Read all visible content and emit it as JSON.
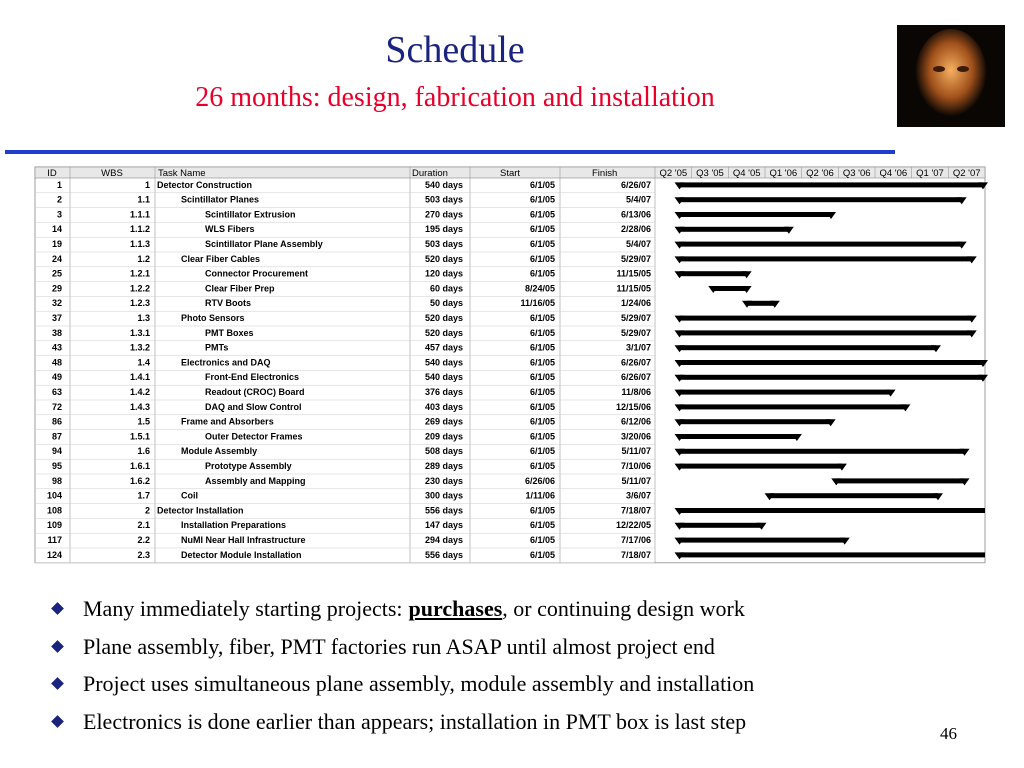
{
  "header": {
    "title": "Schedule",
    "subtitle": "26 months: design, fabrication and installation"
  },
  "table": {
    "columns": [
      "ID",
      "WBS",
      "Task Name",
      "Duration",
      "Start",
      "Finish"
    ],
    "quarters": [
      "Q2 '05",
      "Q3 '05",
      "Q4 '05",
      "Q1 '06",
      "Q2 '06",
      "Q3 '06",
      "Q4 '06",
      "Q1 '07",
      "Q2 '07"
    ],
    "rows": [
      [
        "1",
        "1",
        "Detector Construction",
        "540 days",
        "6/1/05",
        "6/26/07"
      ],
      [
        "2",
        "1.1",
        "Scintillator Planes",
        "503 days",
        "6/1/05",
        "5/4/07"
      ],
      [
        "3",
        "1.1.1",
        "Scintillator Extrusion",
        "270 days",
        "6/1/05",
        "6/13/06"
      ],
      [
        "14",
        "1.1.2",
        "WLS Fibers",
        "195 days",
        "6/1/05",
        "2/28/06"
      ],
      [
        "19",
        "1.1.3",
        "Scintillator Plane Assembly",
        "503 days",
        "6/1/05",
        "5/4/07"
      ],
      [
        "24",
        "1.2",
        "Clear Fiber Cables",
        "520 days",
        "6/1/05",
        "5/29/07"
      ],
      [
        "25",
        "1.2.1",
        "Connector Procurement",
        "120 days",
        "6/1/05",
        "11/15/05"
      ],
      [
        "29",
        "1.2.2",
        "Clear Fiber Prep",
        "60 days",
        "8/24/05",
        "11/15/05"
      ],
      [
        "32",
        "1.2.3",
        "RTV Boots",
        "50 days",
        "11/16/05",
        "1/24/06"
      ],
      [
        "37",
        "1.3",
        "Photo Sensors",
        "520 days",
        "6/1/05",
        "5/29/07"
      ],
      [
        "38",
        "1.3.1",
        "PMT Boxes",
        "520 days",
        "6/1/05",
        "5/29/07"
      ],
      [
        "43",
        "1.3.2",
        "PMTs",
        "457 days",
        "6/1/05",
        "3/1/07"
      ],
      [
        "48",
        "1.4",
        "Electronics and DAQ",
        "540 days",
        "6/1/05",
        "6/26/07"
      ],
      [
        "49",
        "1.4.1",
        "Front-End Electronics",
        "540 days",
        "6/1/05",
        "6/26/07"
      ],
      [
        "63",
        "1.4.2",
        "Readout (CROC) Board",
        "376 days",
        "6/1/05",
        "11/8/06"
      ],
      [
        "72",
        "1.4.3",
        "DAQ and Slow Control",
        "403 days",
        "6/1/05",
        "12/15/06"
      ],
      [
        "86",
        "1.5",
        "Frame and Absorbers",
        "269 days",
        "6/1/05",
        "6/12/06"
      ],
      [
        "87",
        "1.5.1",
        "Outer Detector Frames",
        "209 days",
        "6/1/05",
        "3/20/06"
      ],
      [
        "94",
        "1.6",
        "Module Assembly",
        "508 days",
        "6/1/05",
        "5/11/07"
      ],
      [
        "95",
        "1.6.1",
        "Prototype Assembly",
        "289 days",
        "6/1/05",
        "7/10/06"
      ],
      [
        "98",
        "1.6.2",
        "Assembly and Mapping",
        "230 days",
        "6/26/06",
        "5/11/07"
      ],
      [
        "104",
        "1.7",
        "Coil",
        "300 days",
        "1/11/06",
        "3/6/07"
      ],
      [
        "108",
        "2",
        "Detector Installation",
        "556 days",
        "6/1/05",
        "7/18/07"
      ],
      [
        "109",
        "2.1",
        "Installation Preparations",
        "147 days",
        "6/1/05",
        "12/22/05"
      ],
      [
        "117",
        "2.2",
        "NuMI Near Hall Infrastructure",
        "294 days",
        "6/1/05",
        "7/17/06"
      ],
      [
        "124",
        "2.3",
        "Detector Module Installation",
        "556 days",
        "6/1/05",
        "7/18/07"
      ]
    ]
  },
  "bullets": [
    [
      "Many immediately starting projects:",
      "purchases",
      ", or continuing design work"
    ],
    "Plane assembly, fiber, PMT factories run ASAP until almost project end",
    "Project uses simultaneous plane assembly, module assembly and installation",
    "Electronics is done earlier than appears; installation in PMT box is last step"
  ],
  "page_number": "46"
}
